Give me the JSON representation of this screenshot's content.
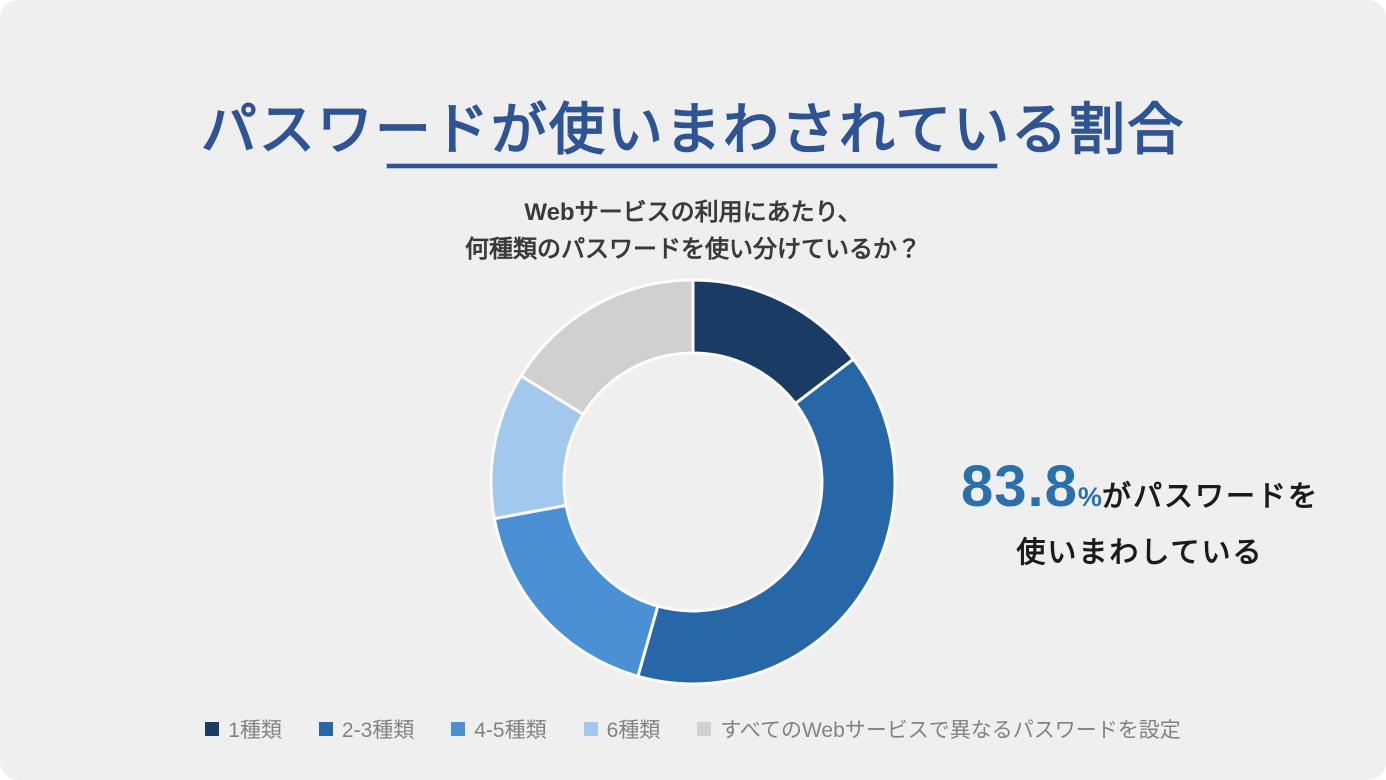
{
  "card": {
    "title": "パスワードが使いまわされている割合",
    "subtitle_line1": "Webサービスの利用にあたり、",
    "subtitle_line2": "何種類のパスワードを使い分けているか？",
    "highlight": {
      "value": "83.8",
      "percent_sign": "%",
      "text_line1": "がパスワードを",
      "text_line2": "使いまわしている"
    }
  },
  "chart_data": {
    "type": "pie",
    "variant": "donut",
    "title": "Webサービスの利用にあたり、何種類のパスワードを使い分けているか？",
    "categories": [
      "1種類",
      "2-3種類",
      "4-5種類",
      "6種類",
      "すべてのWebサービスで異なるパスワードを設定"
    ],
    "values": [
      14.6,
      39.8,
      17.7,
      11.7,
      16.2
    ],
    "unit": "%",
    "colors": [
      "#1a3c64",
      "#2767a7",
      "#4a90d5",
      "#a3c8ee",
      "#d0d0d0"
    ],
    "start_angle_deg": 0,
    "direction": "clockwise",
    "inner_radius_ratio": 0.64,
    "separator_color": "#fcfcfc",
    "legend_position": "bottom",
    "annotation": "83.8%がパスワードを使いまわしている"
  },
  "legend": {
    "items": [
      {
        "label": "1種類",
        "color": "#1a3c64"
      },
      {
        "label": "2-3種類",
        "color": "#2767a7"
      },
      {
        "label": "4-5種類",
        "color": "#4a90d5"
      },
      {
        "label": "6種類",
        "color": "#a3c8ee"
      },
      {
        "label": "すべてのWebサービスで異なるパスワードを設定",
        "color": "#d0d0d0"
      }
    ]
  },
  "colors": {
    "background": "#efefef",
    "title": "#2e5494",
    "underline": "#2f5496",
    "subtitle": "#3a3a3a",
    "highlight_value": "#2c6fad",
    "highlight_text": "#1b1b1b",
    "legend_text": "#828282"
  }
}
